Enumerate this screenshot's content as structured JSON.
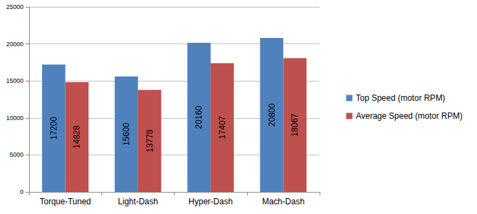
{
  "chart_data": {
    "type": "bar",
    "categories": [
      "Torque-Tuned",
      "Light-Dash",
      "Hyper-Dash",
      "Mach-Dash"
    ],
    "series": [
      {
        "name": "Top Speed (motor RPM)",
        "color": "#4f81bd",
        "values": [
          17200,
          15600,
          20160,
          20800
        ]
      },
      {
        "name": "Average Speed (motor RPM)",
        "color": "#c0504d",
        "values": [
          14828,
          13778,
          17407,
          18067
        ]
      }
    ],
    "ylim": [
      0,
      25000
    ],
    "yticks": [
      0,
      5000,
      10000,
      15000,
      20000,
      25000
    ],
    "grid": true,
    "legend": "right",
    "data_labels": true
  }
}
